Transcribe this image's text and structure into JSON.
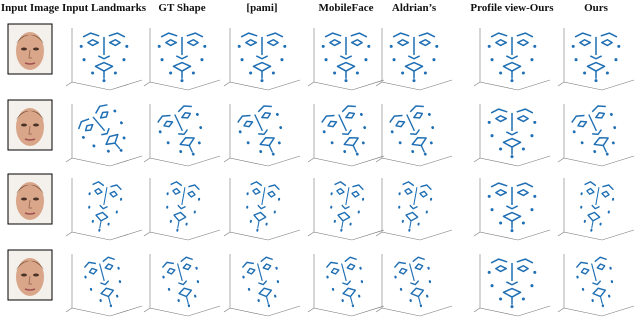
{
  "columns": [
    "Input Image",
    "Input Landmarks",
    "GT Shape",
    "[pami]",
    "MobileFace",
    "Aldrian’s",
    "Profile view-Ours",
    "Ours"
  ]
}
